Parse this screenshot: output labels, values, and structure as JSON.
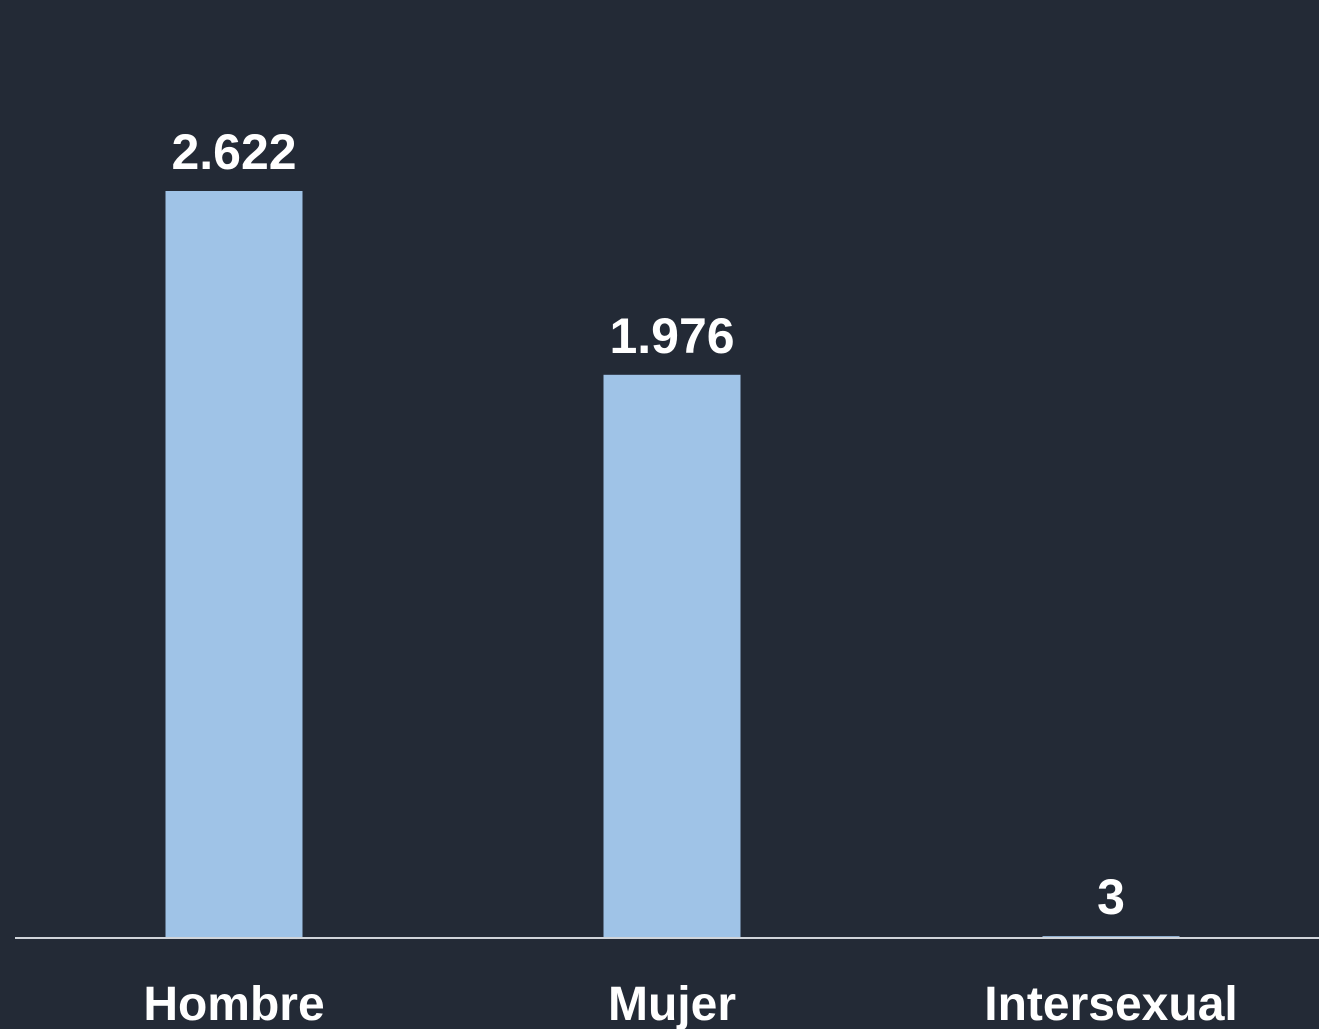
{
  "chart_data": {
    "type": "bar",
    "categories": [
      "Hombre",
      "Mujer",
      "Intersexual"
    ],
    "values": [
      2622,
      1976,
      3
    ],
    "value_labels": [
      "2.622",
      "1.976",
      "3"
    ],
    "title": "",
    "xlabel": "",
    "ylabel": "",
    "ylim": [
      0,
      2622
    ],
    "grid": false,
    "legend": "none",
    "colors": {
      "bar": "#9fc3e7",
      "background": "#232a36",
      "axis": "#d0d4da",
      "text": "#ffffff"
    }
  }
}
